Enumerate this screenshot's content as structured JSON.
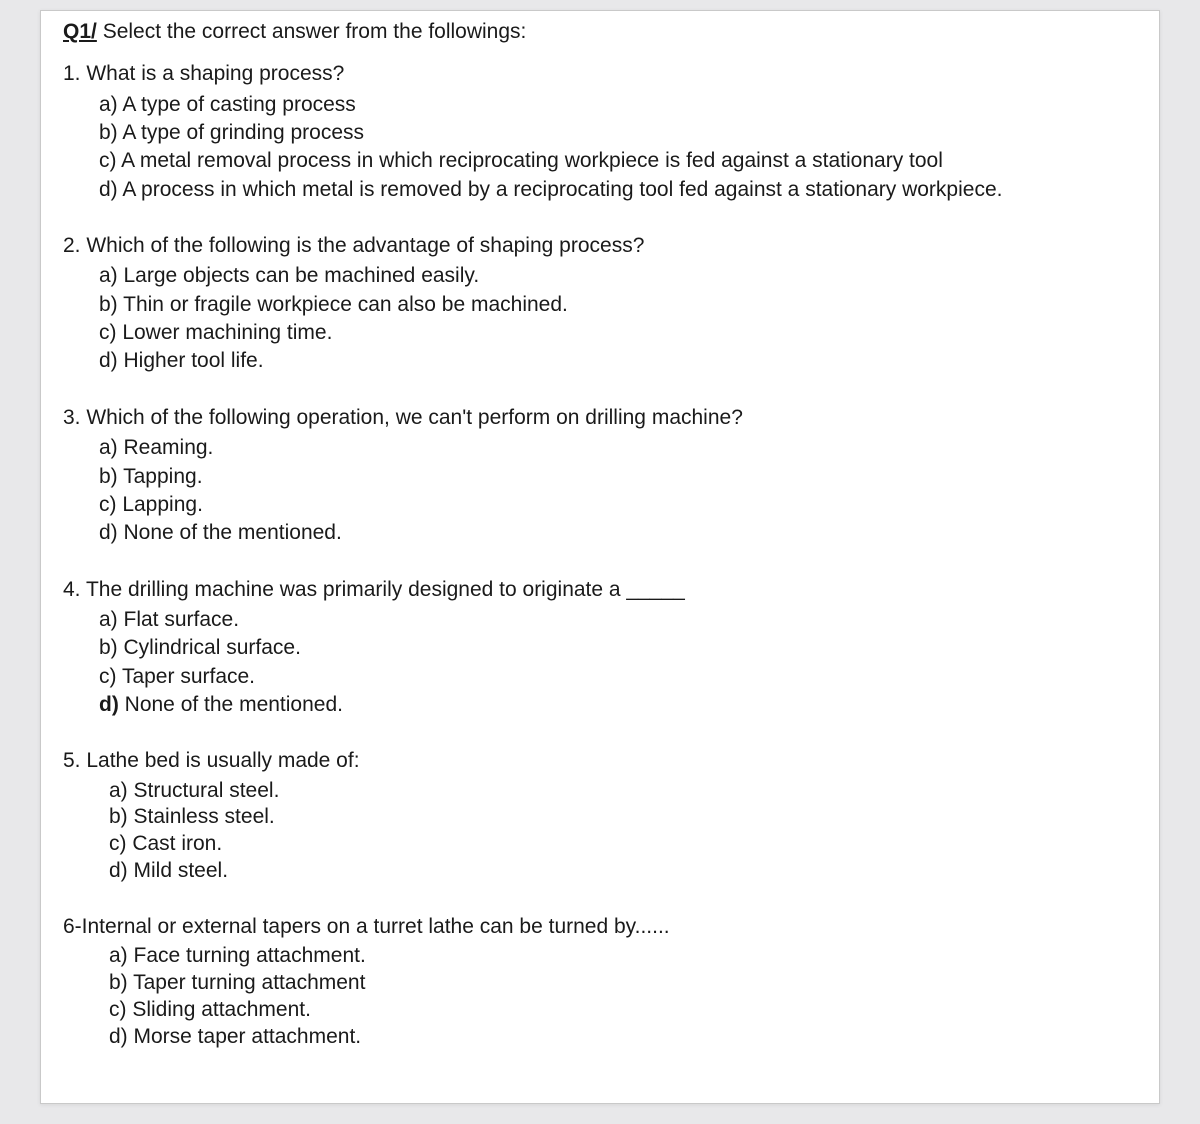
{
  "header": {
    "prefix": "Q1/",
    "text": " Select the correct answer from the followings:"
  },
  "questions": [
    {
      "num": "1.",
      "prompt": "What is a shaping process?",
      "tight": false,
      "bold_d": false,
      "options": [
        "a) A type of casting process",
        "b) A type of grinding process",
        "c) A metal removal process in which reciprocating workpiece is fed against a stationary tool",
        "d) A process in which metal is removed by a reciprocating tool fed against a stationary workpiece."
      ]
    },
    {
      "num": "2.",
      "prompt": "Which of the following is the advantage of shaping process?",
      "tight": false,
      "bold_d": false,
      "options": [
        "a) Large objects can be machined easily.",
        "b) Thin or fragile workpiece can also be machined.",
        "c) Lower machining time.",
        "d) Higher tool life."
      ]
    },
    {
      "num": "3.",
      "prompt": "Which of the following operation, we can't perform on drilling machine?",
      "tight": false,
      "bold_d": false,
      "options": [
        "a) Reaming.",
        "b) Tapping.",
        "c) Lapping.",
        "d) None of the mentioned."
      ]
    },
    {
      "num": "4.",
      "prompt": "The drilling machine was primarily designed to originate a _____",
      "tight": false,
      "bold_d": true,
      "options": [
        "a) Flat surface.",
        "b) Cylindrical surface.",
        "c) Taper surface.",
        "d) None of the mentioned."
      ]
    },
    {
      "num": "5.",
      "prompt": "Lathe bed is usually made of:",
      "tight": true,
      "bold_d": false,
      "options": [
        "a)  Structural steel.",
        "b)  Stainless steel.",
        "c)  Cast iron.",
        "d)  Mild steel."
      ]
    },
    {
      "num": "",
      "prompt": "6-Internal or external tapers on a turret lathe can be turned by......",
      "tight": true,
      "bold_d": false,
      "options": [
        "a)  Face turning attachment.",
        "b)  Taper turning attachment",
        "c)  Sliding attachment.",
        "d)  Morse taper attachment."
      ]
    }
  ]
}
